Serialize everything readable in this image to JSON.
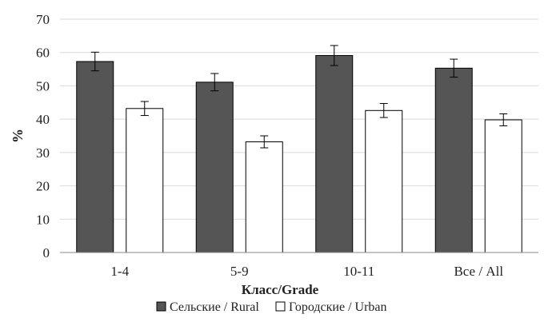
{
  "chart_data": {
    "type": "bar",
    "categories": [
      "1-4",
      "5-9",
      "10-11",
      "Все / All"
    ],
    "series": [
      {
        "name": "Сельские / Rural",
        "values": [
          57.3,
          51.1,
          59.1,
          55.3
        ],
        "errors": [
          2.8,
          2.6,
          3.0,
          2.7
        ],
        "color": "#555555"
      },
      {
        "name": "Городские / Urban",
        "values": [
          43.2,
          33.2,
          42.6,
          39.8
        ],
        "errors": [
          2.1,
          1.8,
          2.1,
          1.8
        ],
        "color": "#ffffff"
      }
    ],
    "xlabel": "Класс/Grade",
    "ylabel": "%",
    "ylim": [
      0,
      70
    ],
    "yticks": [
      "0",
      "10",
      "20",
      "30",
      "40",
      "50",
      "60",
      "70"
    ],
    "grid": true,
    "legend_position": "bottom"
  }
}
